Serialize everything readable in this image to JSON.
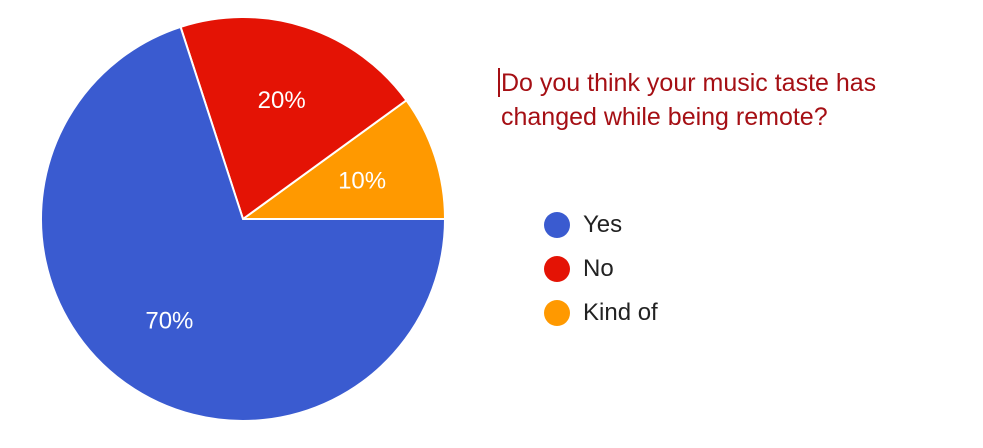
{
  "question": "Do you think your music taste has changed while being remote?",
  "chart_data": {
    "type": "pie",
    "title": "Do you think your music taste has changed while being remote?",
    "categories": [
      "Yes",
      "No",
      "Kind of"
    ],
    "values": [
      70,
      20,
      10
    ],
    "unit": "%",
    "data_labels": [
      "70%",
      "20%",
      "10%"
    ],
    "colors": [
      "#3a5bd0",
      "#e41305",
      "#ff9900"
    ],
    "legend": "right"
  }
}
